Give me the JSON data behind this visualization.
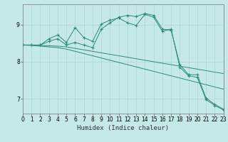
{
  "xlabel": "Humidex (Indice chaleur)",
  "bg_color": "#c5e8e8",
  "line_color": "#2d8b78",
  "xlim": [
    0,
    23
  ],
  "ylim": [
    6.6,
    9.55
  ],
  "xticks": [
    0,
    1,
    2,
    3,
    4,
    5,
    6,
    7,
    8,
    9,
    10,
    11,
    12,
    13,
    14,
    15,
    16,
    17,
    18,
    19,
    20,
    21,
    22,
    23
  ],
  "yticks": [
    7,
    8,
    9
  ],
  "lines": [
    {
      "x": [
        0,
        1,
        2,
        3,
        4,
        5,
        6,
        7,
        8,
        9,
        10,
        11,
        12,
        13,
        14,
        15,
        16,
        17,
        18,
        19,
        20,
        21,
        22,
        23
      ],
      "y": [
        8.45,
        8.45,
        8.45,
        8.55,
        8.62,
        8.45,
        8.52,
        8.45,
        8.38,
        8.88,
        9.05,
        9.2,
        9.25,
        9.22,
        9.3,
        9.25,
        8.88,
        8.85,
        7.92,
        7.65,
        7.65,
        7.02,
        6.85,
        6.72
      ],
      "marker": true
    },
    {
      "x": [
        0,
        1,
        2,
        3,
        4,
        5,
        6,
        7,
        8,
        9,
        10,
        11,
        12,
        13,
        14,
        15,
        16,
        17,
        18,
        19,
        20,
        21,
        22,
        23
      ],
      "y": [
        8.45,
        8.45,
        8.45,
        8.62,
        8.72,
        8.52,
        8.92,
        8.65,
        8.55,
        9.02,
        9.12,
        9.18,
        9.05,
        8.98,
        9.28,
        9.2,
        8.82,
        8.88,
        7.85,
        7.62,
        7.58,
        6.98,
        6.82,
        6.7
      ],
      "marker": true
    },
    {
      "x": [
        0,
        1,
        2,
        3,
        4,
        5,
        6,
        7,
        8,
        9,
        10,
        11,
        12,
        13,
        14,
        15,
        16,
        17,
        18,
        19,
        20,
        21,
        22,
        23
      ],
      "y": [
        8.45,
        8.45,
        8.44,
        8.43,
        8.42,
        8.4,
        8.36,
        8.32,
        8.28,
        8.24,
        8.2,
        8.16,
        8.12,
        8.08,
        8.04,
        8.0,
        7.96,
        7.92,
        7.88,
        7.84,
        7.8,
        7.76,
        7.72,
        7.68
      ],
      "marker": false
    },
    {
      "x": [
        0,
        1,
        2,
        3,
        4,
        5,
        6,
        7,
        8,
        9,
        10,
        11,
        12,
        13,
        14,
        15,
        16,
        17,
        18,
        19,
        20,
        21,
        22,
        23
      ],
      "y": [
        8.45,
        8.44,
        8.42,
        8.4,
        8.38,
        8.34,
        8.28,
        8.22,
        8.16,
        8.1,
        8.04,
        7.98,
        7.92,
        7.86,
        7.8,
        7.74,
        7.68,
        7.62,
        7.56,
        7.5,
        7.44,
        7.38,
        7.32,
        7.26
      ],
      "marker": false
    }
  ],
  "grid_color": "#afd4d4",
  "tick_fontsize": 5.5,
  "label_fontsize": 6.5
}
